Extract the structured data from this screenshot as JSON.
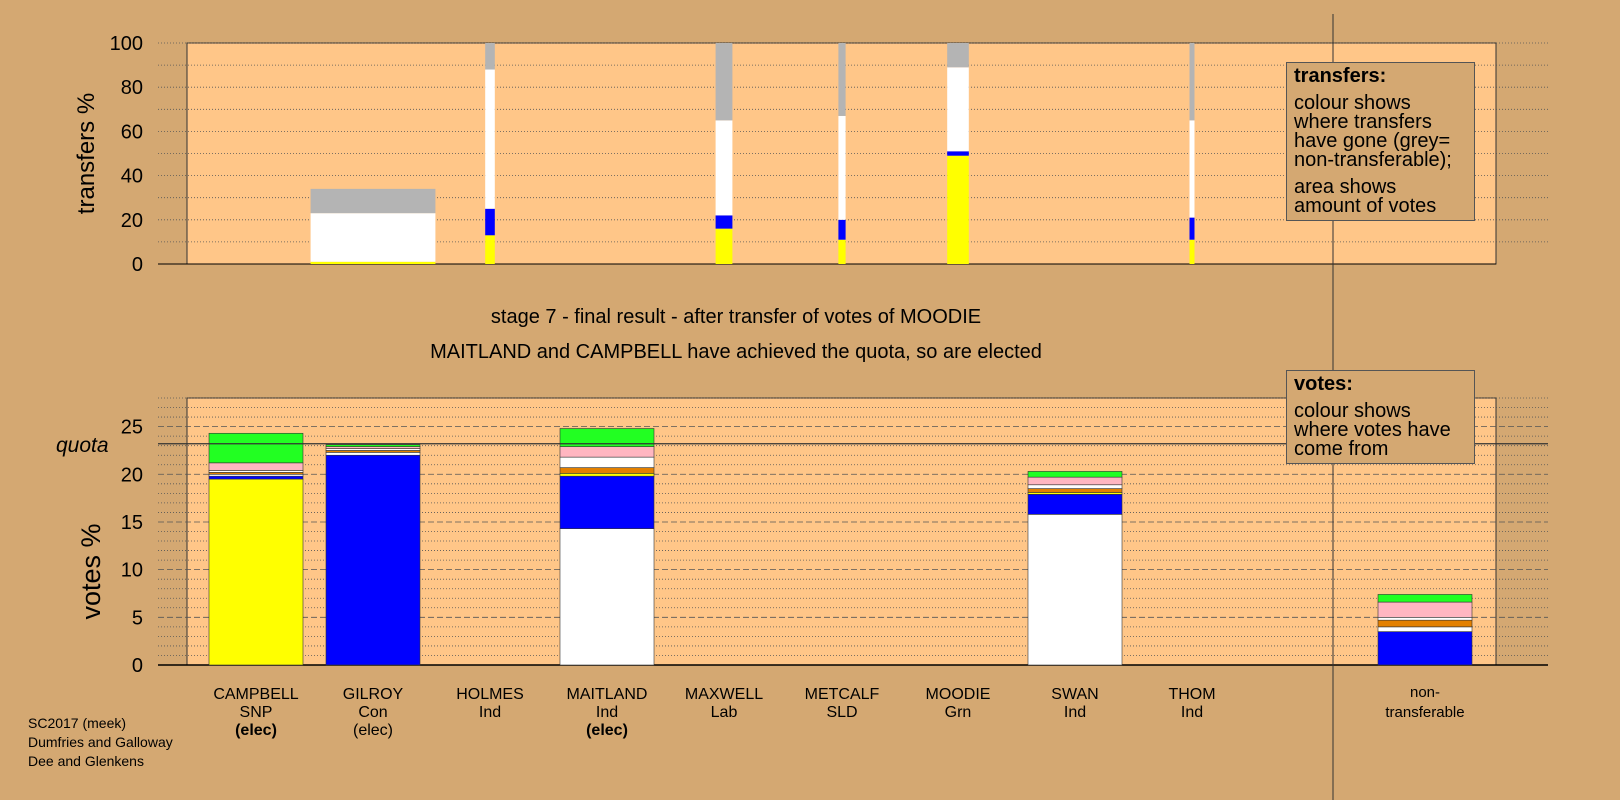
{
  "chart_data": [
    {
      "type": "bar",
      "name": "transfers",
      "ylabel": "transfers %",
      "ylim": [
        0,
        100
      ],
      "yticks": [
        0,
        20,
        40,
        60,
        80,
        100
      ],
      "grid": true,
      "columns": [
        {
          "candidate": "GILROY",
          "width_votes_pct": 2.6,
          "segments": [
            {
              "party": "SNP",
              "color": "#ffff00",
              "value": 1
            },
            {
              "party": "Ind",
              "color": "#ffffff",
              "value": 22
            },
            {
              "party": "non-transferable",
              "color": "#b4b4b4",
              "value": 11
            }
          ]
        },
        {
          "candidate": "HOLMES",
          "width_votes_pct": 0.2,
          "segments": [
            {
              "party": "SNP",
              "color": "#ffff00",
              "value": 13
            },
            {
              "party": "Con",
              "color": "#0000ff",
              "value": 12
            },
            {
              "party": "Ind",
              "color": "#ffffff",
              "value": 63
            },
            {
              "party": "non-transferable",
              "color": "#b4b4b4",
              "value": 12
            }
          ]
        },
        {
          "candidate": "MAXWELL",
          "width_votes_pct": 0.35,
          "segments": [
            {
              "party": "SNP",
              "color": "#ffff00",
              "value": 16
            },
            {
              "party": "Con",
              "color": "#0000ff",
              "value": 6
            },
            {
              "party": "Ind",
              "color": "#ffffff",
              "value": 43
            },
            {
              "party": "non-transferable",
              "color": "#b4b4b4",
              "value": 35
            }
          ]
        },
        {
          "candidate": "METCALF",
          "width_votes_pct": 0.15,
          "segments": [
            {
              "party": "SNP",
              "color": "#ffff00",
              "value": 11
            },
            {
              "party": "Con",
              "color": "#0000ff",
              "value": 9
            },
            {
              "party": "Ind",
              "color": "#ffffff",
              "value": 47
            },
            {
              "party": "non-transferable",
              "color": "#b4b4b4",
              "value": 33
            }
          ]
        },
        {
          "candidate": "MOODIE",
          "width_votes_pct": 0.45,
          "segments": [
            {
              "party": "SNP",
              "color": "#ffff00",
              "value": 49
            },
            {
              "party": "Con",
              "color": "#0000ff",
              "value": 2
            },
            {
              "party": "Ind",
              "color": "#ffffff",
              "value": 38
            },
            {
              "party": "non-transferable",
              "color": "#b4b4b4",
              "value": 11
            }
          ]
        },
        {
          "candidate": "THOM",
          "width_votes_pct": 0.1,
          "segments": [
            {
              "party": "SNP",
              "color": "#ffff00",
              "value": 11
            },
            {
              "party": "Con",
              "color": "#0000ff",
              "value": 10
            },
            {
              "party": "Ind",
              "color": "#ffffff",
              "value": 44
            },
            {
              "party": "non-transferable",
              "color": "#b4b4b4",
              "value": 35
            }
          ]
        }
      ]
    },
    {
      "type": "bar",
      "name": "votes",
      "ylabel": "votes %",
      "ylim": [
        0,
        28
      ],
      "yticks": [
        0,
        5,
        10,
        15,
        20,
        25
      ],
      "quota": 23.2,
      "quota_label": "quota",
      "grid": true,
      "categories": [
        {
          "name": "CAMPBELL",
          "party": "SNP",
          "status": "(elec)",
          "status_bold": true
        },
        {
          "name": "GILROY",
          "party": "Con",
          "status": "(elec)",
          "status_bold": false
        },
        {
          "name": "HOLMES",
          "party": "Ind",
          "status": "",
          "status_bold": false
        },
        {
          "name": "MAITLAND",
          "party": "Ind",
          "status": "(elec)",
          "status_bold": true
        },
        {
          "name": "MAXWELL",
          "party": "Lab",
          "status": "",
          "status_bold": false
        },
        {
          "name": "METCALF",
          "party": "SLD",
          "status": "",
          "status_bold": false
        },
        {
          "name": "MOODIE",
          "party": "Grn",
          "status": "",
          "status_bold": false
        },
        {
          "name": "SWAN",
          "party": "Ind",
          "status": "",
          "status_bold": false
        },
        {
          "name": "THOM",
          "party": "Ind",
          "status": "",
          "status_bold": false
        }
      ],
      "nontransferable_label": [
        "non-",
        "transferable"
      ],
      "stacks": [
        {
          "candidate": "CAMPBELL",
          "segments": [
            {
              "color": "#ffff00",
              "value": 19.5
            },
            {
              "color": "#0000ff",
              "value": 0.3
            },
            {
              "color": "#ffffff",
              "value": 0.2
            },
            {
              "color": "#e38000",
              "value": 0.2
            },
            {
              "color": "#ffffff",
              "value": 0.2
            },
            {
              "color": "#ffb6c1",
              "value": 0.8
            },
            {
              "color": "#22ff22",
              "value": 3.1
            }
          ]
        },
        {
          "candidate": "GILROY",
          "segments": [
            {
              "color": "#0000ff",
              "value": 22.0
            },
            {
              "color": "#ffffff",
              "value": 0.3
            },
            {
              "color": "#e38000",
              "value": 0.2
            },
            {
              "color": "#ffffff",
              "value": 0.2
            },
            {
              "color": "#ffb6c1",
              "value": 0.2
            },
            {
              "color": "#22ff22",
              "value": 0.2
            }
          ]
        },
        {
          "candidate": "HOLMES",
          "segments": []
        },
        {
          "candidate": "MAITLAND",
          "segments": [
            {
              "color": "#ffffff",
              "value": 14.3
            },
            {
              "color": "#0000ff",
              "value": 5.5
            },
            {
              "color": "#ffff00",
              "value": 0.3
            },
            {
              "color": "#e38000",
              "value": 0.6
            },
            {
              "color": "#ffffff",
              "value": 1.1
            },
            {
              "color": "#ffb6c1",
              "value": 1.1
            },
            {
              "color": "#22ff22",
              "value": 1.9
            }
          ]
        },
        {
          "candidate": "MAXWELL",
          "segments": []
        },
        {
          "candidate": "METCALF",
          "segments": []
        },
        {
          "candidate": "MOODIE",
          "segments": []
        },
        {
          "candidate": "SWAN",
          "segments": [
            {
              "color": "#ffffff",
              "value": 15.8
            },
            {
              "color": "#0000ff",
              "value": 2.1
            },
            {
              "color": "#ffff00",
              "value": 0.2
            },
            {
              "color": "#e38000",
              "value": 0.4
            },
            {
              "color": "#ffffff",
              "value": 0.4
            },
            {
              "color": "#ffb6c1",
              "value": 0.8
            },
            {
              "color": "#22ff22",
              "value": 0.6
            }
          ]
        },
        {
          "candidate": "THOM",
          "segments": []
        },
        {
          "candidate": "non-transferable",
          "segments": [
            {
              "color": "#0000ff",
              "value": 3.5
            },
            {
              "color": "#ffffff",
              "value": 0.5
            },
            {
              "color": "#e38000",
              "value": 0.7
            },
            {
              "color": "#ffffff",
              "value": 0.3
            },
            {
              "color": "#ffb6c1",
              "value": 1.6
            },
            {
              "color": "#22ff22",
              "value": 0.8
            }
          ]
        }
      ]
    }
  ],
  "stage_text": {
    "line1": "stage 7 - final result - after transfer of votes of MOODIE",
    "line2": "MAITLAND and CAMPBELL have achieved the quota, so are elected"
  },
  "legends": {
    "transfers": {
      "title": "transfers:",
      "text1": "colour shows where transfers have gone (grey= non-transferable);",
      "text2": "area shows amount of votes"
    },
    "votes": {
      "title": "votes:",
      "text1": "colour shows where votes have come from"
    }
  },
  "footnote": {
    "line1": "SC2017 (meek)",
    "line2": "Dumfries and Galloway",
    "line3": "Dee and Glenkens"
  },
  "colors": {
    "background": "#d4a872",
    "plot_background": "#ffc688"
  }
}
